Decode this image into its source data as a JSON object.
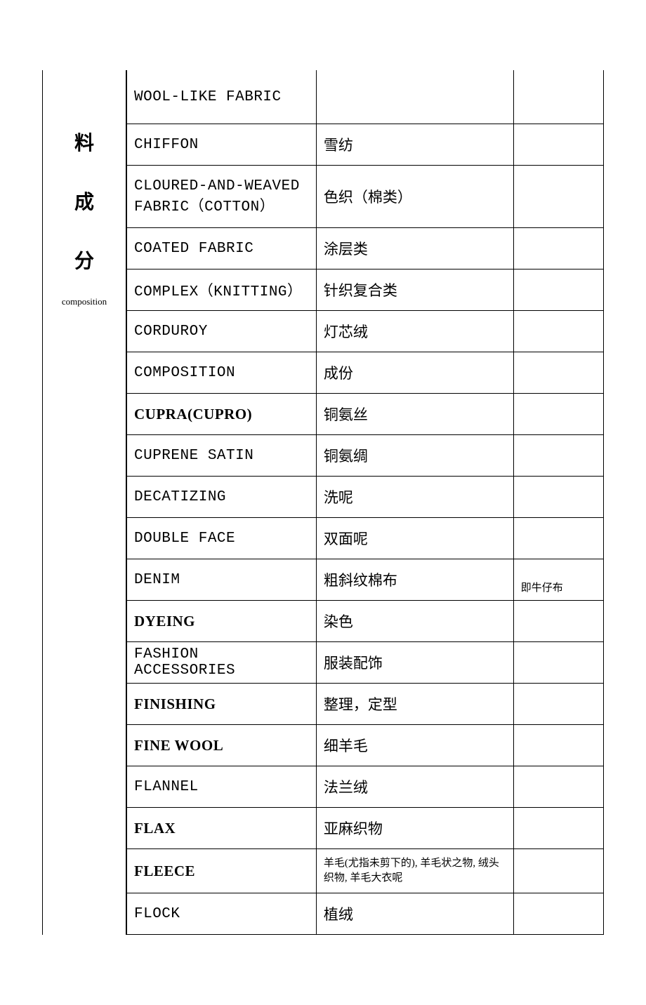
{
  "left_label": {
    "chars": [
      "料",
      "成",
      "分"
    ],
    "sub": "composition"
  },
  "rows": [
    {
      "en": "WOOL-LIKE FABRIC",
      "cn": "",
      "note": "",
      "en_bold": false,
      "cn_small": false,
      "tall": true
    },
    {
      "en": "CHIFFON",
      "cn": "雪纺",
      "note": "",
      "en_bold": false,
      "cn_small": false,
      "tall": false
    },
    {
      "en": "CLOURED-AND-WEAVED FABRIC（COTTON）",
      "cn": "色织（棉类）",
      "note": "",
      "en_bold": false,
      "cn_small": false,
      "tall": true,
      "xtall": true
    },
    {
      "en": "COATED FABRIC",
      "cn": "涂层类",
      "note": "",
      "en_bold": false,
      "cn_small": false,
      "tall": false
    },
    {
      "en": "COMPLEX（KNITTING）",
      "cn": "针织复合类",
      "note": "",
      "en_bold": false,
      "cn_small": false,
      "tall": false
    },
    {
      "en": "CORDUROY",
      "cn": "灯芯绒",
      "note": "",
      "en_bold": false,
      "cn_small": false,
      "tall": false
    },
    {
      "en": "COMPOSITION",
      "cn": "成份",
      "note": "",
      "en_bold": false,
      "cn_small": false,
      "tall": false
    },
    {
      "en": "CUPRA(CUPRO)",
      "cn": "铜氨丝",
      "note": "",
      "en_bold": true,
      "cn_small": false,
      "tall": false
    },
    {
      "en": "CUPRENE SATIN",
      "cn": "铜氨绸",
      "note": "",
      "en_bold": false,
      "cn_small": false,
      "tall": false
    },
    {
      "en": "DECATIZING",
      "cn": "洗呢",
      "note": "",
      "en_bold": false,
      "cn_small": false,
      "tall": false
    },
    {
      "en": "DOUBLE FACE",
      "cn": "双面呢",
      "note": "",
      "en_bold": false,
      "cn_small": false,
      "tall": false
    },
    {
      "en": "DENIM",
      "cn": "粗斜纹棉布",
      "note": "即牛仔布",
      "en_bold": false,
      "cn_small": false,
      "tall": false
    },
    {
      "en": "DYEING",
      "cn": "染色",
      "note": "",
      "en_bold": true,
      "cn_small": false,
      "tall": false
    },
    {
      "en": "FASHION ACCESSORIES",
      "cn": "服装配饰",
      "note": "",
      "en_bold": false,
      "cn_small": false,
      "tall": false
    },
    {
      "en": "FINISHING",
      "cn": "整理，定型",
      "note": "",
      "en_bold": true,
      "cn_small": false,
      "tall": false
    },
    {
      "en": "FINE WOOL",
      "cn": "细羊毛",
      "note": "",
      "en_bold": true,
      "cn_small": false,
      "tall": false
    },
    {
      "en": "FLANNEL",
      "cn": "法兰绒",
      "note": "",
      "en_bold": false,
      "cn_small": false,
      "tall": false
    },
    {
      "en": "FLAX",
      "cn": "亚麻织物",
      "note": "",
      "en_bold": true,
      "cn_small": false,
      "tall": false
    },
    {
      "en": "FLEECE",
      "cn": "羊毛(尤指未剪下的), 羊毛状之物, 绒头织物, 羊毛大衣呢",
      "note": "",
      "en_bold": true,
      "cn_small": true,
      "tall": false
    },
    {
      "en": "FLOCK",
      "cn": "植绒",
      "note": "",
      "en_bold": false,
      "cn_small": false,
      "tall": false
    }
  ]
}
